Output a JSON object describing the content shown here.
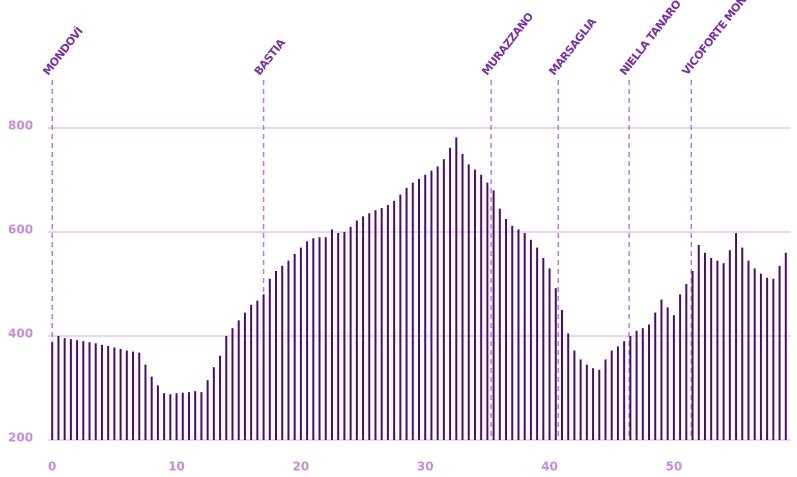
{
  "chart_data": {
    "type": "bar",
    "x": [
      0,
      0.5,
      1,
      1.5,
      2,
      2.5,
      3,
      3.5,
      4,
      4.5,
      5,
      5.5,
      6,
      6.5,
      7,
      7.5,
      8,
      8.5,
      9,
      9.5,
      10,
      10.5,
      11,
      11.5,
      12,
      12.5,
      13,
      13.5,
      14,
      14.5,
      15,
      15.5,
      16,
      16.5,
      17,
      17.5,
      18,
      18.5,
      19,
      19.5,
      20,
      20.5,
      21,
      21.5,
      22,
      22.5,
      23,
      23.5,
      24,
      24.5,
      25,
      25.5,
      26,
      26.5,
      27,
      27.5,
      28,
      28.5,
      29,
      29.5,
      30,
      30.5,
      31,
      31.5,
      32,
      32.5,
      33,
      33.5,
      34,
      34.5,
      35,
      35.5,
      36,
      36.5,
      37,
      37.5,
      38,
      38.5,
      39,
      39.5,
      40,
      40.5,
      41,
      41.5,
      42,
      42.5,
      43,
      43.5,
      44,
      44.5,
      45,
      45.5,
      46,
      46.5,
      47,
      47.5,
      48,
      48.5,
      49,
      49.5,
      50,
      50.5,
      51,
      51.5,
      52,
      52.5,
      53,
      53.5,
      54,
      54.5,
      55,
      55.5,
      56,
      56.5,
      57,
      57.5,
      58,
      58.5,
      59
    ],
    "values": [
      388,
      400,
      396,
      394,
      392,
      390,
      388,
      386,
      383,
      381,
      378,
      375,
      372,
      370,
      368,
      345,
      322,
      305,
      290,
      288,
      290,
      291,
      292,
      294,
      292,
      315,
      340,
      362,
      400,
      415,
      430,
      445,
      460,
      468,
      480,
      510,
      525,
      535,
      545,
      558,
      570,
      582,
      588,
      590,
      590,
      605,
      598,
      600,
      610,
      622,
      630,
      636,
      642,
      646,
      652,
      660,
      672,
      685,
      695,
      702,
      710,
      718,
      726,
      740,
      762,
      782,
      750,
      730,
      720,
      710,
      695,
      680,
      645,
      625,
      612,
      605,
      598,
      585,
      570,
      550,
      530,
      492,
      450,
      405,
      372,
      355,
      345,
      338,
      335,
      355,
      372,
      380,
      390,
      400,
      410,
      415,
      422,
      445,
      470,
      455,
      440,
      480,
      500,
      525,
      575,
      560,
      550,
      545,
      540,
      565,
      598,
      570,
      545,
      530,
      520,
      512,
      510,
      535,
      560
    ],
    "color": "#4b0a6e",
    "xlim": [
      -0.5,
      59.5
    ],
    "xticks": [
      0,
      10,
      20,
      30,
      40,
      50
    ],
    "ylim": [
      200,
      1000
    ],
    "yticks": [
      200,
      400,
      600,
      800
    ],
    "grid": true,
    "grid_color": "#d9a8f0",
    "markers": [
      {
        "x": 0,
        "label": "MONDOVÌ"
      },
      {
        "x": 17.0,
        "label": "BASTIA"
      },
      {
        "x": 35.3,
        "label": "MURAZZANO"
      },
      {
        "x": 40.7,
        "label": "MARSAGLIA"
      },
      {
        "x": 46.4,
        "label": "NIELLA TANARO"
      },
      {
        "x": 51.4,
        "label": "VICOFORTE MONDOVÌ"
      }
    ],
    "marker_color": "#b57be0"
  }
}
